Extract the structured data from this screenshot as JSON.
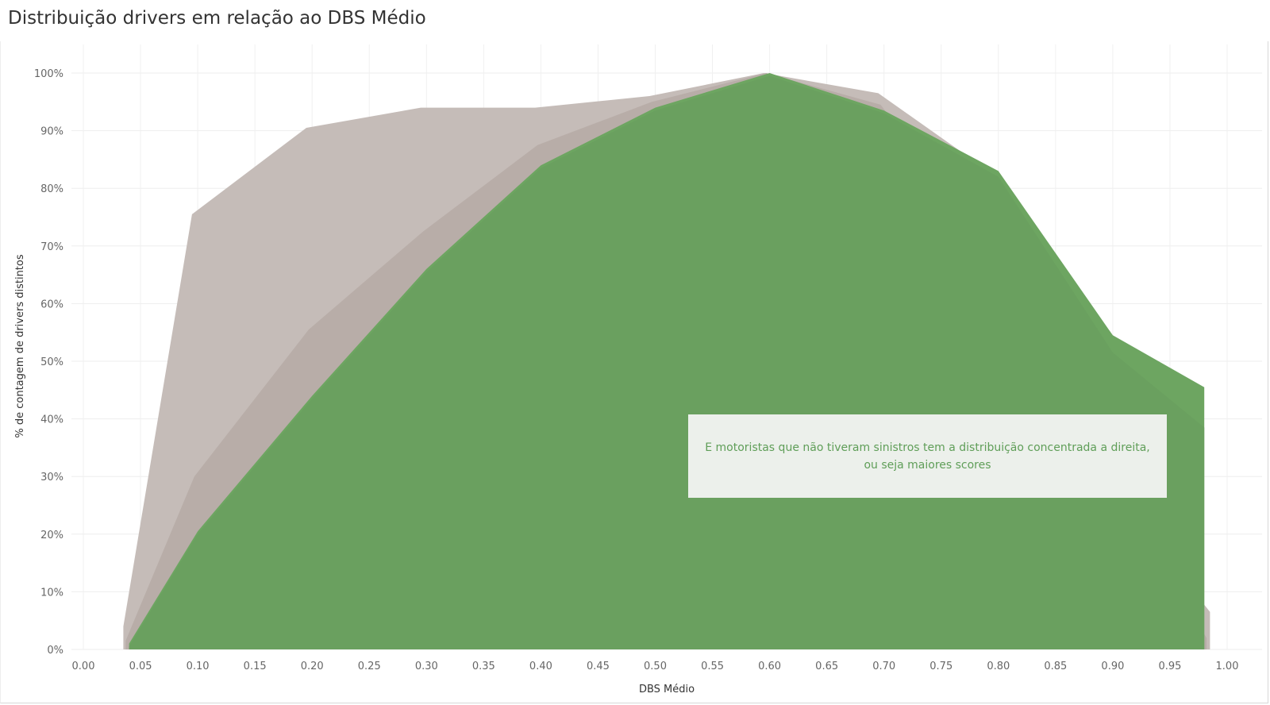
{
  "chart_data": {
    "type": "area",
    "title": "Distribuição drivers em relação ao DBS Médio",
    "xlabel": "DBS Médio",
    "ylabel": "% de contagem de drivers distintos",
    "xlim": [
      0.0,
      1.0
    ],
    "ylim": [
      0,
      100
    ],
    "x_ticks": [
      "0.00",
      "0.05",
      "0.10",
      "0.15",
      "0.20",
      "0.25",
      "0.30",
      "0.35",
      "0.40",
      "0.45",
      "0.50",
      "0.55",
      "0.60",
      "0.65",
      "0.70",
      "0.75",
      "0.80",
      "0.85",
      "0.90",
      "0.95",
      "1.00"
    ],
    "y_ticks": [
      "0%",
      "10%",
      "20%",
      "30%",
      "40%",
      "50%",
      "60%",
      "70%",
      "80%",
      "90%",
      "100%"
    ],
    "grid": true,
    "series": [
      {
        "color": "#c5bcb8",
        "points": [
          [
            0.035,
            0
          ],
          [
            0.035,
            4
          ],
          [
            0.095,
            75.5
          ],
          [
            0.195,
            90.5
          ],
          [
            0.295,
            94
          ],
          [
            0.395,
            94
          ],
          [
            0.495,
            96
          ],
          [
            0.595,
            100
          ],
          [
            0.695,
            96.5
          ],
          [
            0.795,
            82.5
          ],
          [
            0.895,
            29
          ],
          [
            0.985,
            6.5
          ],
          [
            0.985,
            0
          ]
        ]
      },
      {
        "color": "#b8ada8",
        "points": [
          [
            0.037,
            0
          ],
          [
            0.037,
            1.5
          ],
          [
            0.097,
            30
          ],
          [
            0.197,
            55.5
          ],
          [
            0.297,
            72.5
          ],
          [
            0.397,
            87.5
          ],
          [
            0.497,
            95
          ],
          [
            0.597,
            100
          ],
          [
            0.697,
            94.5
          ],
          [
            0.797,
            68.5
          ],
          [
            0.897,
            29
          ],
          [
            0.982,
            2
          ],
          [
            0.982,
            0
          ]
        ]
      },
      {
        "color": "#6da561",
        "points": [
          [
            0.04,
            0
          ],
          [
            0.04,
            1
          ],
          [
            0.1,
            20.5
          ],
          [
            0.2,
            44
          ],
          [
            0.3,
            66
          ],
          [
            0.4,
            84
          ],
          [
            0.5,
            94
          ],
          [
            0.6,
            100
          ],
          [
            0.7,
            93.5
          ],
          [
            0.8,
            83
          ],
          [
            0.9,
            54.5
          ],
          [
            0.98,
            45.5
          ],
          [
            0.98,
            0
          ]
        ]
      },
      {
        "color": "#6aa05f",
        "points": [
          [
            0.04,
            0
          ],
          [
            0.04,
            0.5
          ],
          [
            0.1,
            20
          ],
          [
            0.2,
            43.5
          ],
          [
            0.3,
            65.5
          ],
          [
            0.4,
            83.5
          ],
          [
            0.5,
            93.5
          ],
          [
            0.6,
            99.5
          ],
          [
            0.7,
            93
          ],
          [
            0.8,
            82
          ],
          [
            0.9,
            51.5
          ],
          [
            0.98,
            38.5
          ],
          [
            0.98,
            0
          ]
        ]
      }
    ],
    "annotations": [
      {
        "line1": "E motoristas que não tiveram sinistros tem a distribuição concentrada a direita,",
        "line2": "ou seja maiores scores"
      }
    ]
  }
}
